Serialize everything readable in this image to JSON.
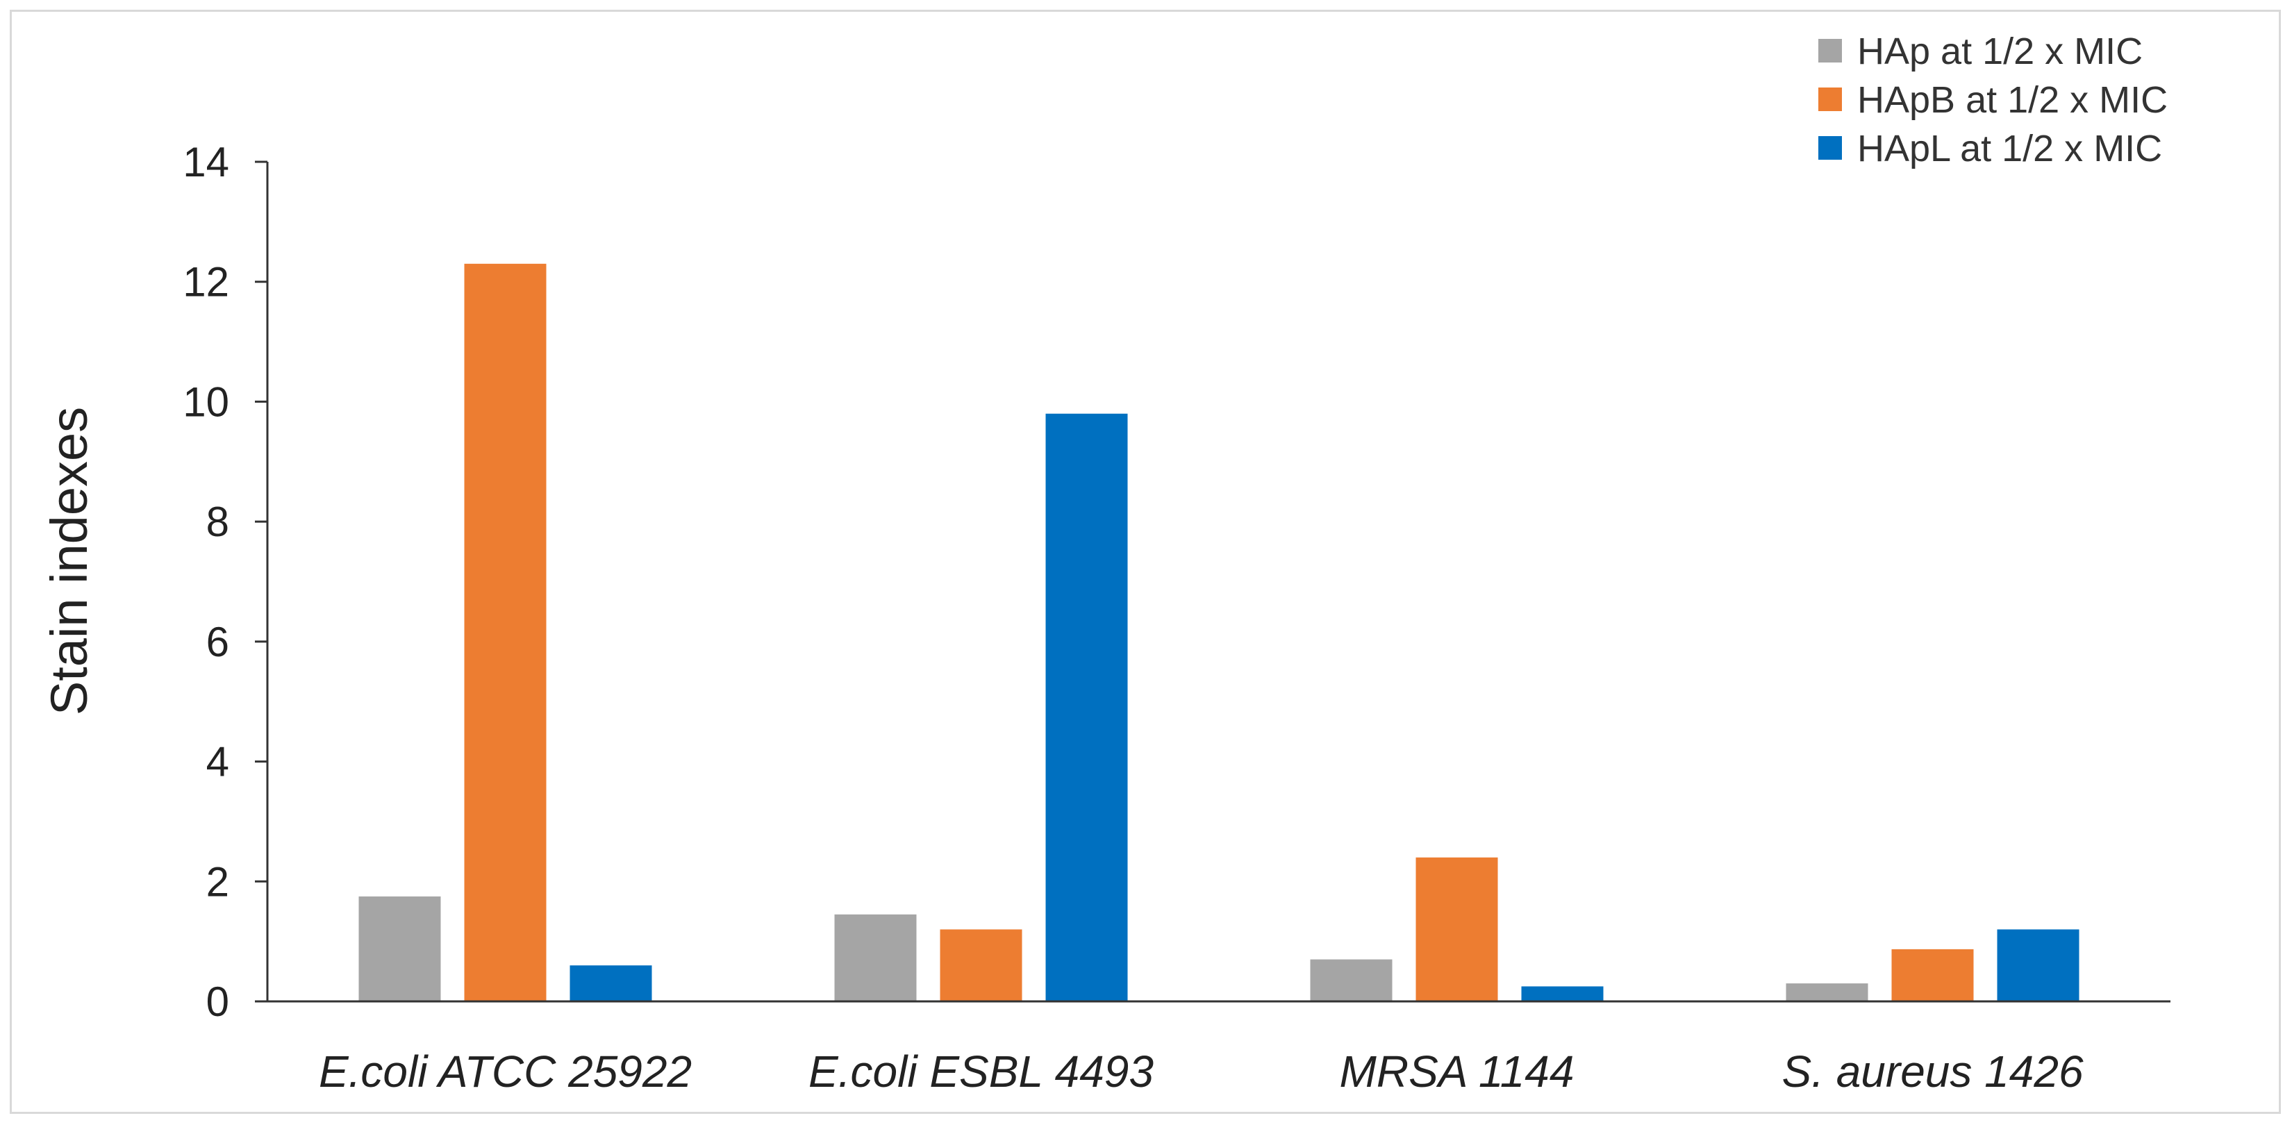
{
  "chart_data": {
    "type": "bar",
    "title": "",
    "xlabel": "",
    "ylabel": "Stain indexes",
    "ylim": [
      0,
      14
    ],
    "yticks": [
      0,
      2,
      4,
      6,
      8,
      10,
      12,
      14
    ],
    "grid": false,
    "legend_position": "top-right",
    "categories": [
      "E.coli ATCC 25922",
      "E.coli ESBL 4493",
      "MRSA 1144",
      "S. aureus 1426"
    ],
    "series": [
      {
        "name": "HAp at 1/2 x MIC",
        "color": "#a5a5a5",
        "values": [
          1.75,
          1.45,
          0.7,
          0.3
        ]
      },
      {
        "name": "HApB at 1/2 x MIC",
        "color": "#ed7d31",
        "values": [
          12.3,
          1.2,
          2.4,
          0.87
        ]
      },
      {
        "name": "HApL at 1/2 x MIC",
        "color": "#0070c0",
        "values": [
          0.6,
          9.8,
          0.25,
          1.2
        ]
      }
    ]
  }
}
